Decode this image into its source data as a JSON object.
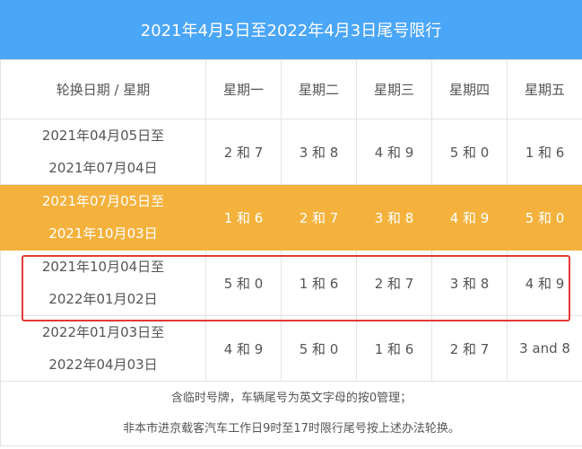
{
  "title": "2021年4月5日至2022年4月3日尾号限行",
  "header": {
    "period_col": "轮换日期 / 星期",
    "days": [
      "星期一",
      "星期二",
      "星期三",
      "星期四",
      "星期五"
    ]
  },
  "rows": [
    {
      "start": "2021年04月05日至",
      "end": "2021年07月04日",
      "values": [
        "2 和 7",
        "3 和 8",
        "4 和 9",
        "5 和 0",
        "1 和 6"
      ]
    },
    {
      "start": "2021年07月05日至",
      "end": "2021年10月03日",
      "values": [
        "1 和 6",
        "2 和 7",
        "3 和 8",
        "4 和 9",
        "5 和 0"
      ]
    },
    {
      "start": "2021年10月04日至",
      "end": "2022年01月02日",
      "values": [
        "5 和 0",
        "1 和 6",
        "2 和 7",
        "3 和 8",
        "4 和 9"
      ]
    },
    {
      "start": "2022年01月03日至",
      "end": "2022年04月03日",
      "values": [
        "4 和 9",
        "5 和 0",
        "1 和 6",
        "2 和 7",
        "3 and 8"
      ]
    }
  ],
  "notes": [
    "含临时号牌，车辆尾号为英文字母的按0管理；",
    "非本市进京载客汽车工作日9时至17时限行尾号按上述办法轮换。"
  ],
  "colors": {
    "title_bg": "#4aa6f7",
    "highlight_row": "#f4b23d",
    "outline": "#e53935"
  }
}
